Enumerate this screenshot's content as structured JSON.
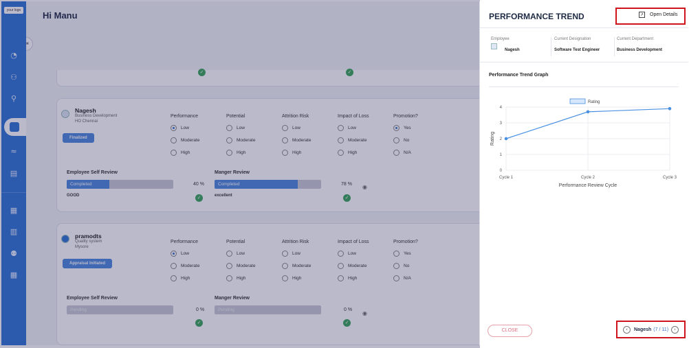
{
  "logo": "your logo",
  "greeting": "Hi Manu",
  "columns": [
    "Performance",
    "Potential",
    "Attrition Risk",
    "Impact of Loss",
    "Promotion?"
  ],
  "level_options": [
    "Low",
    "Moderate",
    "High"
  ],
  "promotion_options": [
    "Yes",
    "No",
    "N/A"
  ],
  "review": {
    "self_label": "Employee Self Review",
    "manager_label": "Manger Review"
  },
  "employees": [
    {
      "name": "Nagesh",
      "department": "Business Development",
      "location": "HO Chennai",
      "status": "Finalized",
      "self_bar_text": "Completed",
      "self_pct": "40 %",
      "self_fraction": 0.4,
      "self_note": "GOOD",
      "mgr_bar_text": "Completed",
      "mgr_pct": "78 %",
      "mgr_fraction": 0.78,
      "mgr_note": "excellent"
    },
    {
      "name": "pramodts",
      "department": "Quality system",
      "location": "Mysore",
      "status": "Appraisal Initiated",
      "self_bar_text": "Pending",
      "self_pct": "0 %",
      "self_fraction": 0,
      "self_note": "",
      "mgr_bar_text": "Pending",
      "mgr_pct": "0 %",
      "mgr_fraction": 0,
      "mgr_note": ""
    }
  ],
  "panel": {
    "title": "PERFORMANCE TREND",
    "open_details": "Open Details",
    "employee_label": "Employee",
    "employee_value": "Nagesh",
    "designation_label": "Current Designation",
    "designation_value": "Software Test Engineer",
    "department_label": "Current Department",
    "department_value": "Business Development",
    "graph_title": "Performance Trend Graph",
    "close": "CLOSE",
    "pager_name": "Nagesh",
    "pager_current": "7",
    "pager_sep": "/",
    "pager_total": "11"
  },
  "chart_data": {
    "type": "line",
    "categories": [
      "Cycle 1",
      "Cycle 2",
      "Cycle 3"
    ],
    "series": [
      {
        "name": "Rating",
        "values": [
          2,
          3.7,
          3.9
        ]
      }
    ],
    "xlabel": "Performance Review Cycle",
    "ylabel": "Rating",
    "ylim": [
      0,
      4
    ],
    "yticks": [
      0,
      1,
      2,
      3,
      4
    ],
    "legend": "top-center",
    "grid": true,
    "color": "#4a90e2"
  }
}
